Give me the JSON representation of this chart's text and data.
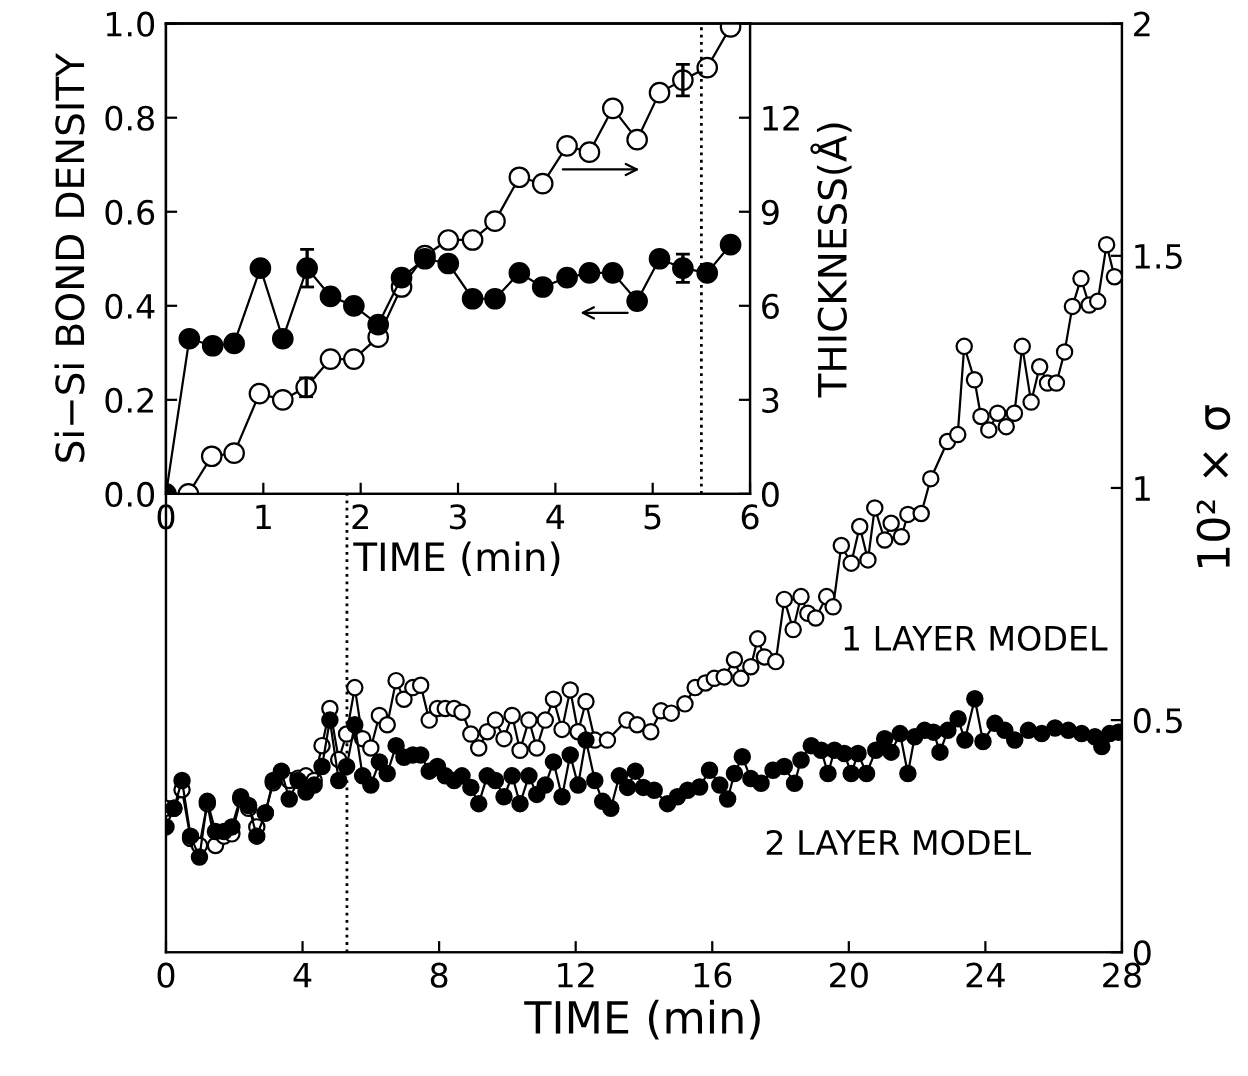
{
  "chart_data": [
    {
      "type": "line",
      "xlabel": "TIME (min)",
      "y2label": "10² × σ",
      "xlim": [
        0,
        28
      ],
      "xticks": [
        0,
        4,
        8,
        12,
        16,
        20,
        24,
        28
      ],
      "y2lim": [
        0,
        2
      ],
      "y2ticks": [
        0,
        0.5,
        1,
        1.5,
        2
      ],
      "marker": "circle",
      "legend": false,
      "ref_lines": [
        {
          "axis": "x",
          "value": 5.3,
          "line_style": "dotted",
          "color": "#000000"
        }
      ],
      "series": [
        {
          "name": "1 LAYER MODEL",
          "color": "#000000",
          "axis": "y2",
          "x": [
            0,
            0.23,
            0.47,
            0.72,
            0.98,
            1.21,
            1.45,
            1.7,
            1.93,
            2.19,
            2.42,
            2.66,
            2.91,
            3.14,
            3.38,
            3.61,
            3.87,
            4.1,
            4.34,
            4.57,
            4.8,
            5.06,
            5.29,
            5.53,
            5.76,
            6.0,
            6.25,
            6.48,
            6.74,
            6.97,
            7.23,
            7.46,
            7.71,
            7.95,
            8.18,
            8.44,
            8.67,
            8.93,
            9.16,
            9.41,
            9.65,
            9.9,
            10.14,
            10.37,
            10.63,
            10.86,
            11.11,
            11.35,
            11.6,
            11.84,
            12.07,
            12.3,
            12.56,
            12.93,
            13.5,
            13.8,
            14.2,
            14.5,
            14.8,
            15.2,
            15.5,
            15.8,
            16.06,
            16.35,
            16.65,
            16.84,
            17.13,
            17.33,
            17.53,
            17.86,
            18.11,
            18.37,
            18.6,
            18.8,
            19.03,
            19.35,
            19.54,
            19.78,
            20.07,
            20.32,
            20.56,
            20.76,
            21.05,
            21.24,
            21.54,
            21.73,
            22.12,
            22.4,
            22.89,
            23.19,
            23.38,
            23.68,
            23.87,
            24.1,
            24.36,
            24.61,
            24.85,
            25.08,
            25.34,
            25.59,
            25.82,
            26.08,
            26.32,
            26.55,
            26.8,
            27.04,
            27.29,
            27.55,
            27.78
          ],
          "values": [
            0.31,
            0.31,
            0.35,
            0.245,
            0.23,
            0.32,
            0.23,
            0.25,
            0.255,
            0.33,
            0.31,
            0.27,
            0.3,
            0.365,
            0.38,
            0.37,
            0.375,
            0.38,
            0.37,
            0.445,
            0.525,
            0.415,
            0.47,
            0.57,
            0.46,
            0.44,
            0.51,
            0.49,
            0.585,
            0.545,
            0.57,
            0.575,
            0.5,
            0.525,
            0.525,
            0.525,
            0.517,
            0.47,
            0.44,
            0.475,
            0.5,
            0.46,
            0.51,
            0.435,
            0.5,
            0.44,
            0.5,
            0.545,
            0.48,
            0.565,
            0.475,
            0.54,
            0.457,
            0.457,
            0.5,
            0.49,
            0.475,
            0.52,
            0.515,
            0.535,
            0.57,
            0.58,
            0.59,
            0.593,
            0.63,
            0.59,
            0.615,
            0.675,
            0.636,
            0.626,
            0.76,
            0.695,
            0.766,
            0.73,
            0.72,
            0.766,
            0.744,
            0.876,
            0.838,
            0.917,
            0.845,
            0.957,
            0.888,
            0.924,
            0.895,
            0.943,
            0.945,
            1.02,
            1.1,
            1.115,
            1.305,
            1.233,
            1.154,
            1.125,
            1.161,
            1.132,
            1.161,
            1.305,
            1.185,
            1.261,
            1.226,
            1.226,
            1.293,
            1.391,
            1.451,
            1.394,
            1.402,
            1.524,
            1.455
          ]
        },
        {
          "name": "2 LAYER MODEL",
          "color": "#000000",
          "axis": "y2",
          "x": [
            0,
            0.23,
            0.47,
            0.72,
            0.98,
            1.21,
            1.45,
            1.7,
            1.93,
            2.19,
            2.42,
            2.66,
            2.91,
            3.14,
            3.38,
            3.61,
            3.87,
            4.1,
            4.34,
            4.57,
            4.8,
            5.06,
            5.29,
            5.53,
            5.76,
            6.0,
            6.25,
            6.48,
            6.74,
            6.97,
            7.23,
            7.46,
            7.71,
            7.95,
            8.18,
            8.44,
            8.67,
            8.93,
            9.16,
            9.41,
            9.65,
            9.9,
            10.14,
            10.37,
            10.63,
            10.86,
            11.11,
            11.35,
            11.6,
            11.84,
            12.07,
            12.3,
            12.56,
            12.79,
            13.03,
            13.28,
            13.52,
            13.75,
            13.98,
            14.3,
            14.69,
            14.98,
            15.28,
            15.63,
            15.92,
            16.22,
            16.45,
            16.65,
            16.88,
            17.13,
            17.43,
            17.78,
            18.11,
            18.41,
            18.6,
            18.9,
            19.19,
            19.39,
            19.58,
            19.87,
            20.07,
            20.27,
            20.52,
            20.79,
            21.05,
            21.24,
            21.5,
            21.73,
            21.93,
            22.22,
            22.48,
            22.67,
            22.9,
            23.2,
            23.4,
            23.69,
            23.93,
            24.28,
            24.57,
            24.86,
            25.26,
            25.65,
            26.04,
            26.43,
            26.82,
            27.21,
            27.41,
            27.64,
            27.9
          ],
          "values": [
            0.27,
            0.31,
            0.37,
            0.25,
            0.205,
            0.325,
            0.26,
            0.26,
            0.27,
            0.335,
            0.316,
            0.25,
            0.3,
            0.37,
            0.39,
            0.33,
            0.37,
            0.345,
            0.36,
            0.4,
            0.5,
            0.37,
            0.4,
            0.49,
            0.38,
            0.36,
            0.41,
            0.385,
            0.445,
            0.42,
            0.425,
            0.425,
            0.39,
            0.4,
            0.38,
            0.37,
            0.38,
            0.355,
            0.32,
            0.38,
            0.37,
            0.335,
            0.38,
            0.32,
            0.38,
            0.34,
            0.36,
            0.41,
            0.335,
            0.425,
            0.36,
            0.457,
            0.37,
            0.325,
            0.31,
            0.38,
            0.355,
            0.39,
            0.355,
            0.349,
            0.32,
            0.335,
            0.349,
            0.356,
            0.392,
            0.36,
            0.33,
            0.385,
            0.421,
            0.374,
            0.364,
            0.392,
            0.4,
            0.364,
            0.414,
            0.445,
            0.435,
            0.385,
            0.435,
            0.428,
            0.385,
            0.428,
            0.385,
            0.435,
            0.46,
            0.431,
            0.471,
            0.385,
            0.464,
            0.478,
            0.474,
            0.431,
            0.478,
            0.503,
            0.457,
            0.546,
            0.454,
            0.493,
            0.478,
            0.457,
            0.478,
            0.471,
            0.483,
            0.478,
            0.471,
            0.464,
            0.443,
            0.471,
            0.474
          ]
        }
      ]
    },
    {
      "type": "line",
      "xlabel": "TIME (min)",
      "ylabel": "Si−Si BOND DENSITY",
      "y2label": "THICKNESS(Å)",
      "xlim": [
        0,
        6
      ],
      "xticks": [
        0,
        1,
        2,
        3,
        4,
        5,
        6
      ],
      "ylim": [
        0,
        1
      ],
      "yticks": [
        {
          "value": 0,
          "label": "0.0"
        },
        {
          "value": 0.2,
          "label": "0.2"
        },
        {
          "value": 0.4,
          "label": "0.4"
        },
        {
          "value": 0.6,
          "label": "0.6"
        },
        {
          "value": 0.8,
          "label": "0.8"
        },
        {
          "value": 1,
          "label": "1.0"
        }
      ],
      "y2lim": [
        0,
        15
      ],
      "y2ticks": [
        0,
        3,
        6,
        9,
        12,
        {
          "value": 15,
          "label": null
        }
      ],
      "marker": "circle",
      "legend": false,
      "ref_lines": [
        {
          "axis": "x",
          "value": 5.5,
          "line_style": "dotted",
          "color": "#000000"
        }
      ],
      "series": [
        {
          "color": "#000000",
          "axis": "y",
          "x": [
            0,
            0.24,
            0.48,
            0.7,
            0.97,
            1.2,
            1.45,
            1.69,
            1.93,
            2.18,
            2.42,
            2.66,
            2.9,
            3.15,
            3.38,
            3.63,
            3.87,
            4.12,
            4.35,
            4.59,
            4.84,
            5.07,
            5.31,
            5.56,
            5.8
          ],
          "values": [
            0,
            0.33,
            0.315,
            0.32,
            0.48,
            0.33,
            0.48,
            0.42,
            0.4,
            0.36,
            0.46,
            0.5,
            0.49,
            0.415,
            0.415,
            0.47,
            0.44,
            0.46,
            0.47,
            0.47,
            0.41,
            0.5,
            0.48,
            0.47,
            0.53
          ],
          "errors": [
            null,
            null,
            null,
            null,
            null,
            null,
            0.04,
            null,
            null,
            null,
            null,
            null,
            null,
            null,
            null,
            null,
            null,
            null,
            null,
            null,
            null,
            null,
            0.03,
            null,
            null
          ]
        },
        {
          "color": "#000000",
          "axis": "y2",
          "x": [
            0.23,
            0.47,
            0.7,
            0.96,
            1.2,
            1.44,
            1.69,
            1.93,
            2.18,
            2.42,
            2.66,
            2.9,
            3.15,
            3.38,
            3.63,
            3.87,
            4.12,
            4.35,
            4.59,
            4.84,
            5.07,
            5.31,
            5.56,
            5.8
          ],
          "values": [
            0,
            1.2,
            1.3,
            3.2,
            3.0,
            3.4,
            4.3,
            4.3,
            5.0,
            6.6,
            7.6,
            8.1,
            8.1,
            8.7,
            10.1,
            9.9,
            11.1,
            10.9,
            12.3,
            11.3,
            12.8,
            13.2,
            13.6,
            14.9
          ],
          "errors": [
            null,
            null,
            null,
            null,
            null,
            0.3,
            null,
            null,
            null,
            null,
            null,
            null,
            null,
            null,
            null,
            null,
            null,
            null,
            null,
            null,
            null,
            0.5,
            null,
            null
          ]
        }
      ]
    }
  ]
}
